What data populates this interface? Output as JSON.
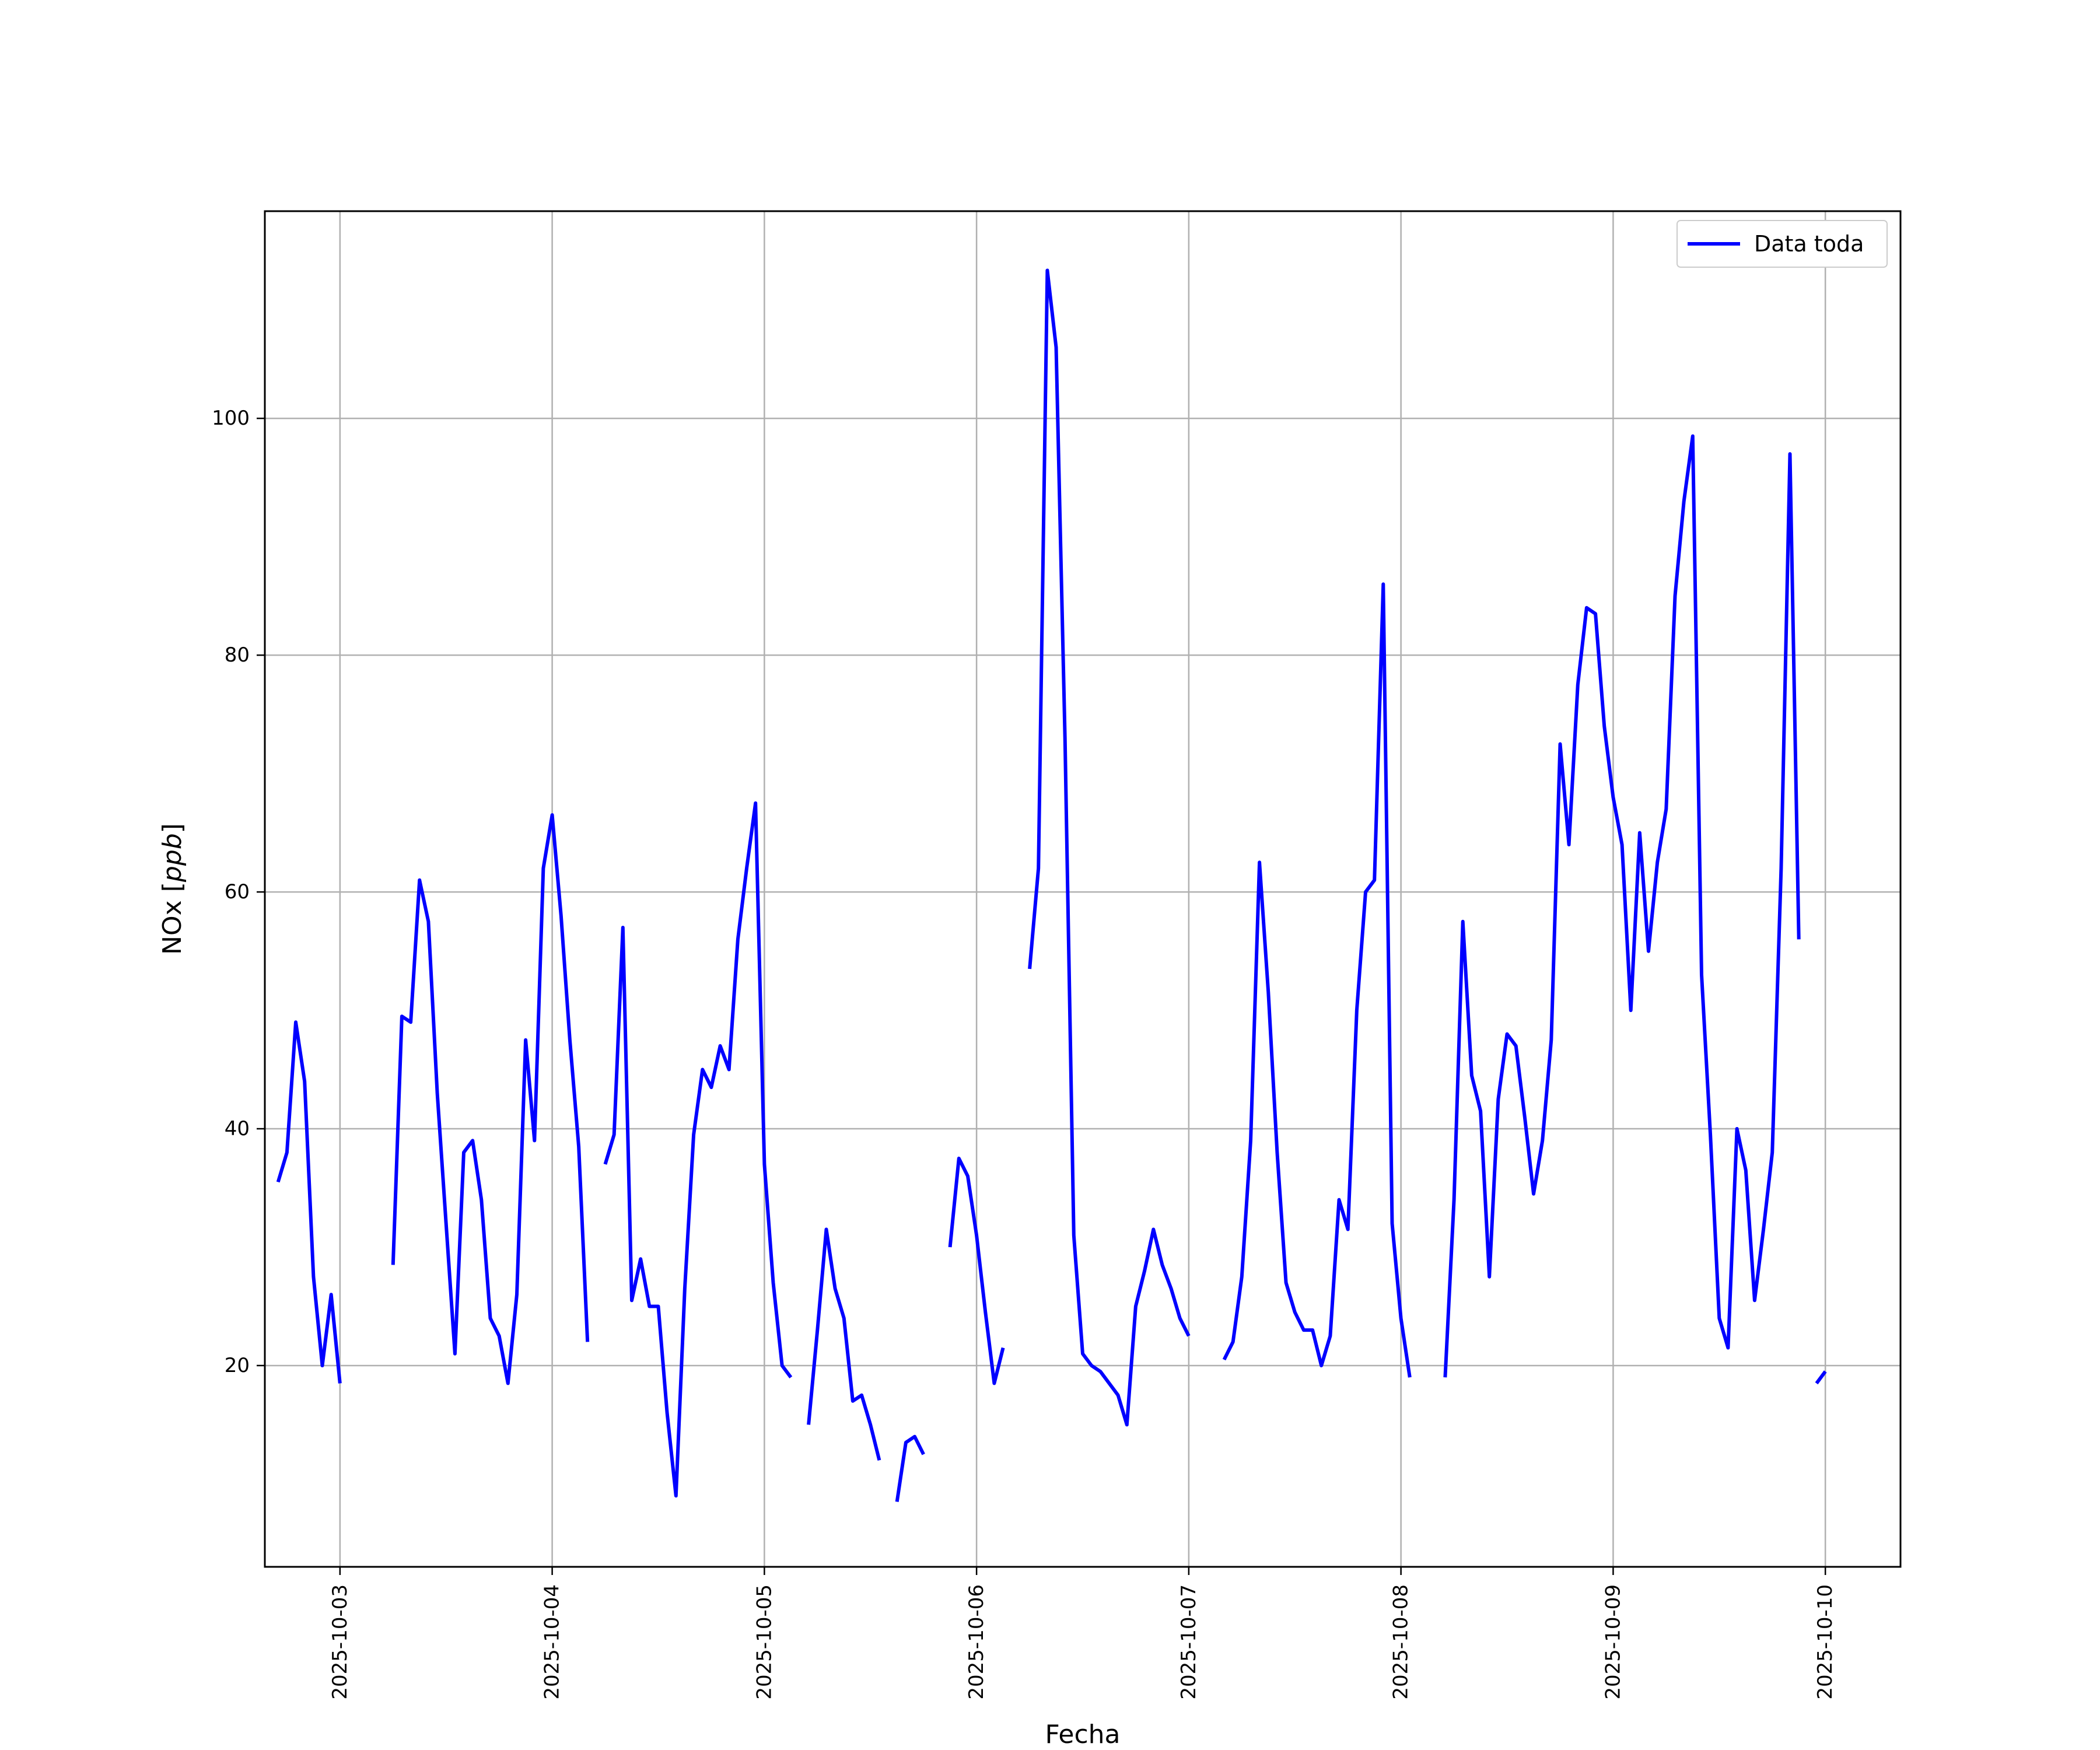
{
  "chart_data": {
    "type": "line",
    "xlabel": "Fecha",
    "ylabel": "NOx [ppb]",
    "ylabel_main": "NOx [",
    "ylabel_unit": "ppb",
    "ylabel_close": "]",
    "xlim": [
      "2025-10-02 15:30",
      "2025-10-10 08:30"
    ],
    "ylim": [
      3,
      117.5
    ],
    "x_ticks": [
      "2025-10-03",
      "2025-10-04",
      "2025-10-05",
      "2025-10-06",
      "2025-10-07",
      "2025-10-08",
      "2025-10-09",
      "2025-10-10"
    ],
    "y_ticks": [
      20,
      40,
      60,
      80,
      100
    ],
    "grid": true,
    "legend_position": "top-right",
    "series": [
      {
        "name": "Data toda",
        "color": "#0000ff",
        "segments": [
          [
            [
              "2025-10-02 17:00",
              35.5
            ],
            [
              "2025-10-02 18:00",
              38
            ],
            [
              "2025-10-02 19:00",
              49
            ],
            [
              "2025-10-02 20:00",
              44
            ],
            [
              "2025-10-02 21:00",
              27.5
            ],
            [
              "2025-10-02 22:00",
              20
            ],
            [
              "2025-10-02 23:00",
              26
            ],
            [
              "2025-10-03 00:00",
              18.5
            ]
          ],
          [
            [
              "2025-10-03 06:00",
              28.5
            ],
            [
              "2025-10-03 07:00",
              49.5
            ],
            [
              "2025-10-03 08:00",
              49
            ],
            [
              "2025-10-03 09:00",
              61
            ],
            [
              "2025-10-03 10:00",
              57.5
            ],
            [
              "2025-10-03 11:00",
              43
            ],
            [
              "2025-10-03 12:00",
              32
            ],
            [
              "2025-10-03 13:00",
              21
            ],
            [
              "2025-10-03 14:00",
              38
            ],
            [
              "2025-10-03 15:00",
              39
            ],
            [
              "2025-10-03 16:00",
              34
            ],
            [
              "2025-10-03 17:00",
              24
            ],
            [
              "2025-10-03 18:00",
              22.5
            ],
            [
              "2025-10-03 19:00",
              18.5
            ],
            [
              "2025-10-03 20:00",
              26
            ],
            [
              "2025-10-03 21:00",
              47.5
            ],
            [
              "2025-10-03 22:00",
              39
            ],
            [
              "2025-10-03 23:00",
              62
            ],
            [
              "2025-10-04 00:00",
              66.5
            ],
            [
              "2025-10-04 01:00",
              58
            ],
            [
              "2025-10-04 02:00",
              47.5
            ],
            [
              "2025-10-04 03:00",
              38.5
            ],
            [
              "2025-10-04 04:00",
              22
            ]
          ],
          [
            [
              "2025-10-04 06:00",
              37
            ],
            [
              "2025-10-04 07:00",
              39.5
            ],
            [
              "2025-10-04 08:00",
              57
            ],
            [
              "2025-10-04 09:00",
              25.5
            ],
            [
              "2025-10-04 10:00",
              29
            ],
            [
              "2025-10-04 11:00",
              25
            ],
            [
              "2025-10-04 12:00",
              25
            ],
            [
              "2025-10-04 13:00",
              16
            ],
            [
              "2025-10-04 14:00",
              9
            ],
            [
              "2025-10-04 15:00",
              26.5
            ],
            [
              "2025-10-04 16:00",
              39.5
            ],
            [
              "2025-10-04 17:00",
              45
            ],
            [
              "2025-10-04 18:00",
              43.5
            ],
            [
              "2025-10-04 19:00",
              47
            ],
            [
              "2025-10-04 20:00",
              45
            ],
            [
              "2025-10-04 21:00",
              56
            ],
            [
              "2025-10-04 22:00",
              62
            ],
            [
              "2025-10-04 23:00",
              67.5
            ],
            [
              "2025-10-05 00:00",
              37
            ],
            [
              "2025-10-05 01:00",
              27
            ],
            [
              "2025-10-05 02:00",
              20
            ],
            [
              "2025-10-05 03:00",
              19
            ]
          ],
          [
            [
              "2025-10-05 05:00",
              15
            ],
            [
              "2025-10-05 06:00",
              23
            ],
            [
              "2025-10-05 07:00",
              31.5
            ],
            [
              "2025-10-05 08:00",
              26.5
            ],
            [
              "2025-10-05 09:00",
              24
            ],
            [
              "2025-10-05 10:00",
              17
            ],
            [
              "2025-10-05 11:00",
              17.5
            ],
            [
              "2025-10-05 12:00",
              15
            ],
            [
              "2025-10-05 13:00",
              12
            ]
          ],
          [
            [
              "2025-10-05 15:00",
              8.5
            ],
            [
              "2025-10-05 16:00",
              13.5
            ],
            [
              "2025-10-05 17:00",
              14
            ],
            [
              "2025-10-05 18:00",
              12.5
            ]
          ],
          [
            [
              "2025-10-05 21:00",
              30
            ],
            [
              "2025-10-05 22:00",
              37.5
            ],
            [
              "2025-10-05 23:00",
              36
            ],
            [
              "2025-10-06 00:00",
              31
            ],
            [
              "2025-10-06 01:00",
              24.5
            ],
            [
              "2025-10-06 02:00",
              18.5
            ],
            [
              "2025-10-06 03:00",
              21.5
            ]
          ],
          [
            [
              "2025-10-06 06:00",
              53.5
            ],
            [
              "2025-10-06 07:00",
              62
            ],
            [
              "2025-10-06 08:00",
              112.5
            ],
            [
              "2025-10-06 09:00",
              106
            ],
            [
              "2025-10-06 10:00",
              73
            ],
            [
              "2025-10-06 11:00",
              31
            ],
            [
              "2025-10-06 12:00",
              21
            ],
            [
              "2025-10-06 13:00",
              20
            ],
            [
              "2025-10-06 14:00",
              19.5
            ],
            [
              "2025-10-06 15:00",
              18.5
            ],
            [
              "2025-10-06 16:00",
              17.5
            ],
            [
              "2025-10-06 17:00",
              15
            ],
            [
              "2025-10-06 18:00",
              25
            ],
            [
              "2025-10-06 19:00",
              28
            ],
            [
              "2025-10-06 20:00",
              31.5
            ],
            [
              "2025-10-06 21:00",
              28.5
            ],
            [
              "2025-10-06 22:00",
              26.5
            ],
            [
              "2025-10-06 23:00",
              24
            ],
            [
              "2025-10-07 00:00",
              22.5
            ]
          ],
          [
            [
              "2025-10-07 04:00",
              20.5
            ],
            [
              "2025-10-07 05:00",
              22
            ],
            [
              "2025-10-07 06:00",
              27.5
            ],
            [
              "2025-10-07 07:00",
              39
            ],
            [
              "2025-10-07 08:00",
              62.5
            ],
            [
              "2025-10-07 09:00",
              51.5
            ],
            [
              "2025-10-07 10:00",
              38
            ],
            [
              "2025-10-07 11:00",
              27
            ],
            [
              "2025-10-07 12:00",
              24.5
            ],
            [
              "2025-10-07 13:00",
              23
            ],
            [
              "2025-10-07 14:00",
              23
            ],
            [
              "2025-10-07 15:00",
              20
            ],
            [
              "2025-10-07 16:00",
              22.5
            ],
            [
              "2025-10-07 17:00",
              34
            ],
            [
              "2025-10-07 18:00",
              31.5
            ],
            [
              "2025-10-07 19:00",
              50
            ],
            [
              "2025-10-07 20:00",
              60
            ],
            [
              "2025-10-07 21:00",
              61
            ],
            [
              "2025-10-07 22:00",
              86
            ],
            [
              "2025-10-07 23:00",
              32
            ],
            [
              "2025-10-08 00:00",
              24
            ],
            [
              "2025-10-08 01:00",
              19
            ]
          ],
          [
            [
              "2025-10-08 05:00",
              19
            ],
            [
              "2025-10-08 06:00",
              34
            ],
            [
              "2025-10-08 07:00",
              57.5
            ],
            [
              "2025-10-08 08:00",
              44.5
            ],
            [
              "2025-10-08 09:00",
              41.5
            ],
            [
              "2025-10-08 10:00",
              27.5
            ],
            [
              "2025-10-08 11:00",
              42.5
            ],
            [
              "2025-10-08 12:00",
              48
            ],
            [
              "2025-10-08 13:00",
              47
            ],
            [
              "2025-10-08 14:00",
              41
            ],
            [
              "2025-10-08 15:00",
              34.5
            ],
            [
              "2025-10-08 16:00",
              39
            ],
            [
              "2025-10-08 17:00",
              47.5
            ],
            [
              "2025-10-08 18:00",
              72.5
            ],
            [
              "2025-10-08 19:00",
              64
            ],
            [
              "2025-10-08 20:00",
              77.5
            ],
            [
              "2025-10-08 21:00",
              84
            ],
            [
              "2025-10-08 22:00",
              83.5
            ],
            [
              "2025-10-08 23:00",
              74
            ],
            [
              "2025-10-09 00:00",
              68
            ],
            [
              "2025-10-09 01:00",
              64
            ],
            [
              "2025-10-09 02:00",
              50
            ],
            [
              "2025-10-09 03:00",
              65
            ],
            [
              "2025-10-09 04:00",
              55
            ],
            [
              "2025-10-09 05:00",
              62.5
            ],
            [
              "2025-10-09 06:00",
              67
            ],
            [
              "2025-10-09 07:00",
              85
            ],
            [
              "2025-10-09 08:00",
              93
            ],
            [
              "2025-10-09 09:00",
              98.5
            ],
            [
              "2025-10-09 10:00",
              53
            ],
            [
              "2025-10-09 11:00",
              39.5
            ],
            [
              "2025-10-09 12:00",
              24
            ],
            [
              "2025-10-09 13:00",
              21.5
            ],
            [
              "2025-10-09 14:00",
              40
            ],
            [
              "2025-10-09 15:00",
              36.5
            ],
            [
              "2025-10-09 16:00",
              25.5
            ],
            [
              "2025-10-09 17:00",
              31.5
            ],
            [
              "2025-10-09 18:00",
              38
            ],
            [
              "2025-10-09 19:00",
              62
            ],
            [
              "2025-10-09 20:00",
              97
            ],
            [
              "2025-10-09 21:00",
              56
            ]
          ],
          [
            [
              "2025-10-09 23:00",
              18.5
            ],
            [
              "2025-10-10 00:00",
              19.5
            ]
          ]
        ]
      }
    ]
  }
}
